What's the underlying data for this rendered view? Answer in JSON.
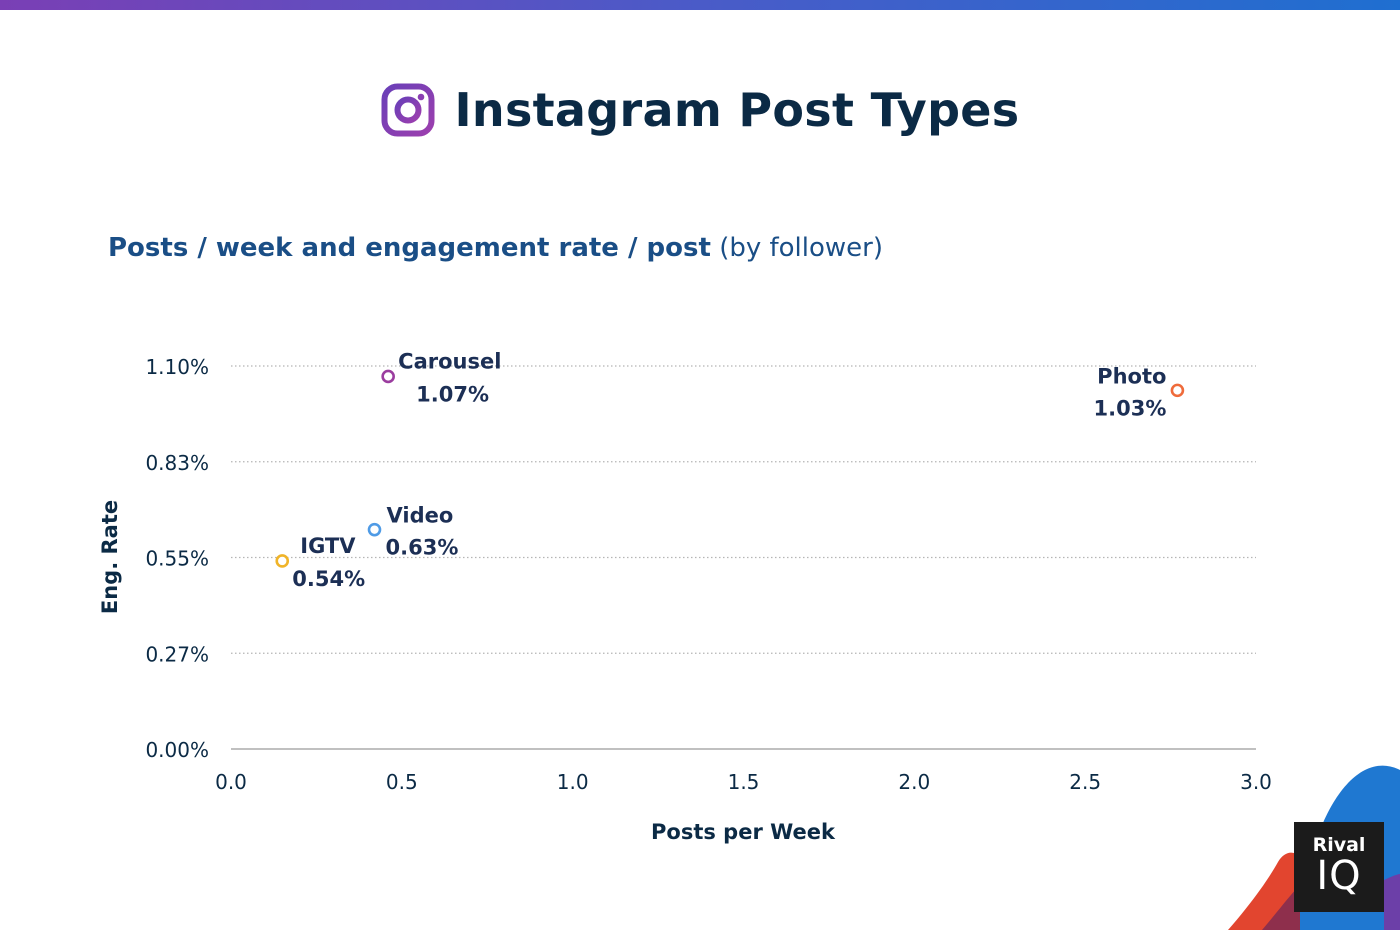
{
  "header": {
    "title": "Instagram Post Types",
    "icon": "instagram-icon"
  },
  "subtitle": {
    "main": "Posts / week and engagement rate / post",
    "note": "(by follower)"
  },
  "chart_data": {
    "type": "scatter",
    "title": "Instagram Post Types",
    "subtitle": "Posts / week and engagement rate / post (by follower)",
    "xlabel": "Posts per Week",
    "ylabel": "Eng. Rate",
    "xlim": [
      0,
      3
    ],
    "ylim": [
      0,
      1.1
    ],
    "x_ticks": [
      0,
      0.5,
      1,
      1.5,
      2,
      2.5,
      3
    ],
    "x_tick_labels": [
      "0.0",
      "0.5",
      "1.0",
      "1.5",
      "2.0",
      "2.5",
      "3.0"
    ],
    "y_ticks": [
      0,
      0.275,
      0.55,
      0.825,
      1.1
    ],
    "y_tick_labels": [
      "0.00%",
      "0.27%",
      "0.55%",
      "0.83%",
      "1.10%"
    ],
    "grid": "horizontal dotted",
    "points": [
      {
        "name": "Carousel",
        "x": 0.46,
        "y": 1.07,
        "label": "1.07%",
        "color": "#9b3d9f",
        "label_pos": "right"
      },
      {
        "name": "Photo",
        "x": 2.77,
        "y": 1.03,
        "label": "1.03%",
        "color": "#ef6b3b",
        "label_pos": "left"
      },
      {
        "name": "Video",
        "x": 0.42,
        "y": 0.63,
        "label": "0.63%",
        "color": "#4f9be6",
        "label_pos": "right"
      },
      {
        "name": "IGTV",
        "x": 0.15,
        "y": 0.54,
        "label": "0.54%",
        "color": "#f0b429",
        "label_pos": "right"
      }
    ]
  },
  "logo": {
    "line1": "Rival",
    "line2": "IQ"
  },
  "colors": {
    "accent_purple": "#7a3fb5",
    "accent_blue": "#1f6fd0",
    "title": "#0b2a45",
    "subtitle": "#1a4e86"
  }
}
